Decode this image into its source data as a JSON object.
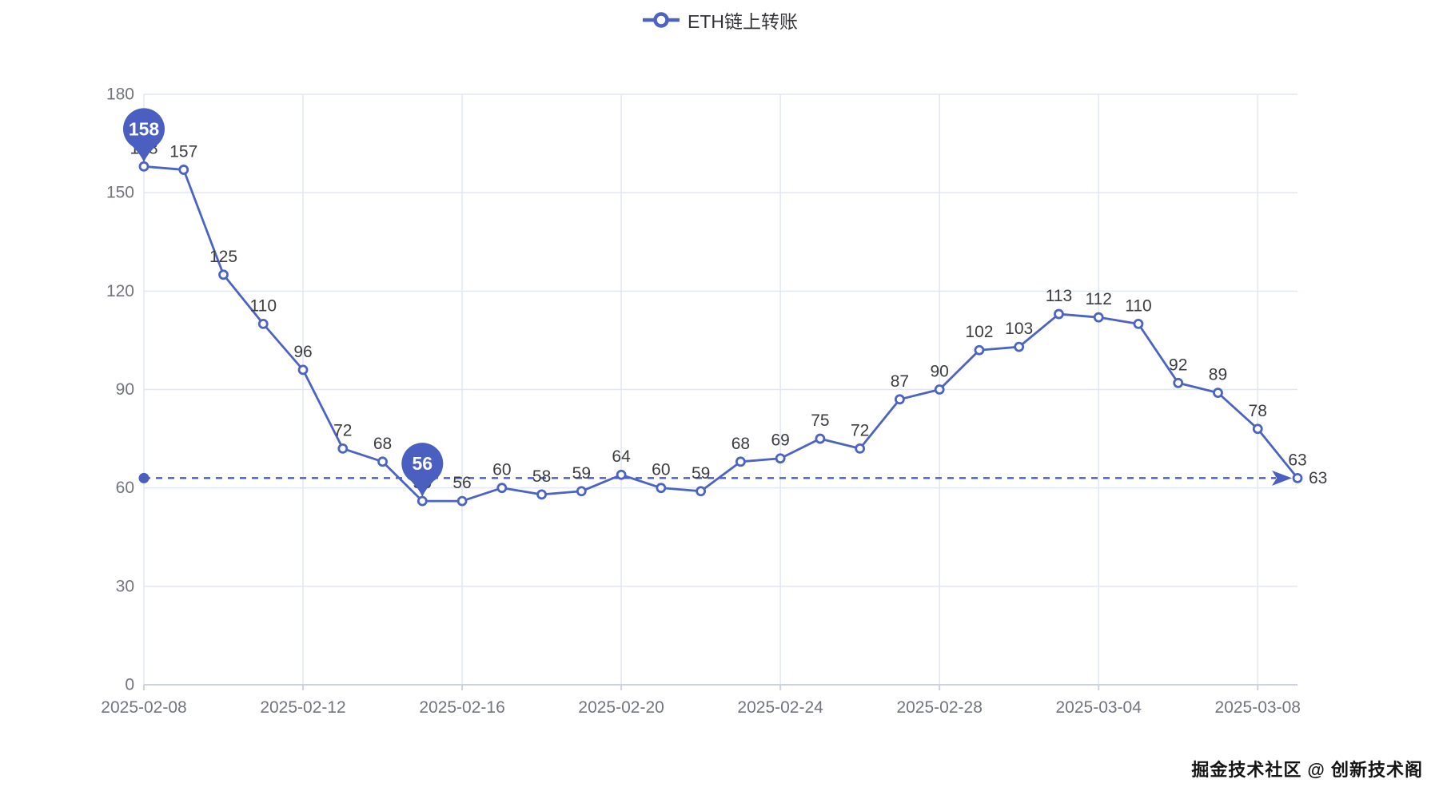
{
  "legend": {
    "label": "ETH链上转账"
  },
  "watermark": "掘金技术社区 @ 创新技术阁",
  "colors": {
    "line": "#4c63c4",
    "marker_fill": "#ffffff",
    "pin": "#4a5fc0",
    "markline": "#4a5fc0",
    "grid": "#e2e7f1",
    "axis_line": "#ccd2de",
    "axis_label": "#73757e",
    "data_label": "#3b3c40",
    "pin_text": "#ffffff",
    "watermark_text": "#141414"
  },
  "chart_data": {
    "type": "line",
    "series_name": "ETH链上转账",
    "x": [
      "2025-02-08",
      "2025-02-09",
      "2025-02-10",
      "2025-02-11",
      "2025-02-12",
      "2025-02-13",
      "2025-02-14",
      "2025-02-15",
      "2025-02-16",
      "2025-02-17",
      "2025-02-18",
      "2025-02-19",
      "2025-02-20",
      "2025-02-21",
      "2025-02-22",
      "2025-02-23",
      "2025-02-24",
      "2025-02-25",
      "2025-02-26",
      "2025-02-27",
      "2025-02-28",
      "2025-03-01",
      "2025-03-02",
      "2025-03-03",
      "2025-03-04",
      "2025-03-05",
      "2025-03-06",
      "2025-03-07",
      "2025-03-08",
      "2025-03-09"
    ],
    "values": [
      158,
      157,
      125,
      110,
      96,
      72,
      68,
      56,
      56,
      60,
      58,
      59,
      64,
      60,
      59,
      68,
      69,
      75,
      72,
      87,
      90,
      102,
      103,
      113,
      112,
      110,
      92,
      89,
      78,
      63
    ],
    "x_tick_indices": [
      0,
      4,
      8,
      12,
      16,
      20,
      24,
      28
    ],
    "x_tick_labels": [
      "2025-02-08",
      "2025-02-12",
      "2025-02-16",
      "2025-02-20",
      "2025-02-24",
      "2025-02-28",
      "2025-03-04",
      "2025-03-08"
    ],
    "y_ticks": [
      0,
      30,
      60,
      90,
      120,
      150,
      180
    ],
    "ylim": [
      0,
      180
    ],
    "grid": true,
    "legend_position": "top-center",
    "mark_point_max": {
      "index": 0,
      "value": 158
    },
    "mark_point_min": {
      "index": 7,
      "value": 56
    },
    "mark_line": {
      "value": 63,
      "label": "63",
      "style": "dashed"
    }
  }
}
